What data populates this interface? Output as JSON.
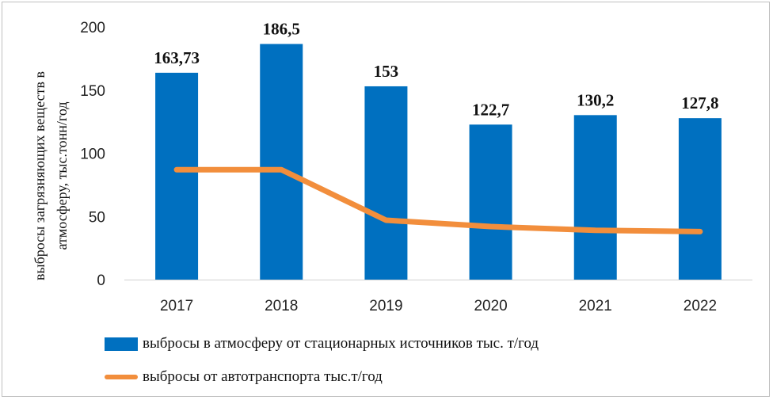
{
  "chart_data": {
    "type": "bar",
    "categories": [
      "2017",
      "2018",
      "2019",
      "2020",
      "2021",
      "2022"
    ],
    "series": [
      {
        "name": "выбросы в атмосферу от стационарных источников тыс.  т/год",
        "type": "bar",
        "color": "#0070c0",
        "values": [
          163.73,
          186.5,
          153,
          122.7,
          130.2,
          127.8
        ],
        "labels": [
          "163,73",
          "186,5",
          "153",
          "122,7",
          "130,2",
          "127,8"
        ]
      },
      {
        "name": "выбросы от автотранспорта тыс.т/год",
        "type": "line",
        "color": "#f28e3c",
        "values": [
          87,
          87,
          47,
          42,
          39,
          38
        ]
      }
    ],
    "ylabel_lines": [
      "выбросы загрязняющих веществ в",
      "атмосферу,  тыс.тонн/год"
    ],
    "yticks": [
      "0",
      "50",
      "100",
      "150",
      "200"
    ],
    "ylim": [
      0,
      200
    ],
    "grid": false,
    "legend": "bottom"
  }
}
